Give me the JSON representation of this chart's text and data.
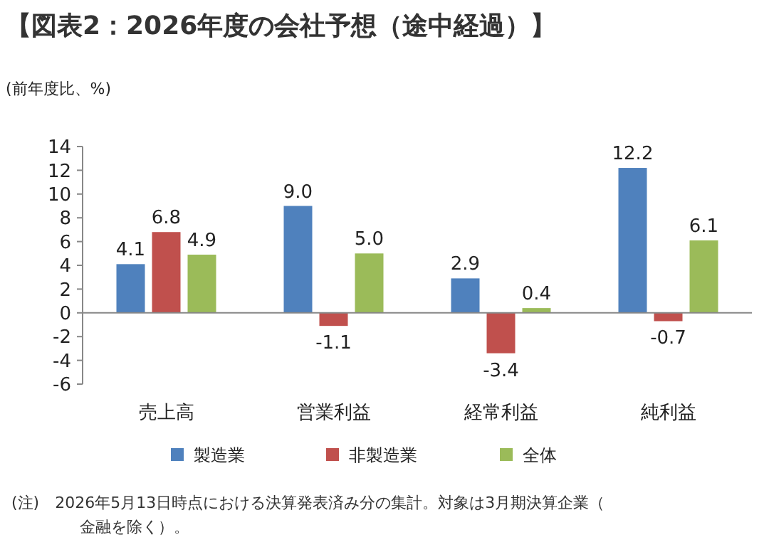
{
  "chart_data": {
    "type": "bar",
    "title": "【図表2：2026年度の会社予想（途中経過）】",
    "ylabel": "(前年度比、%)",
    "categories": [
      "売上高",
      "営業利益",
      "経常利益",
      "純利益"
    ],
    "series": [
      {
        "name": "製造業",
        "color": "#4f81bd",
        "values": [
          4.1,
          9.0,
          2.9,
          12.2
        ],
        "value_labels": [
          "4.1",
          "9.0",
          "2.9",
          "12.2"
        ]
      },
      {
        "name": "非製造業",
        "color": "#c0504d",
        "values": [
          6.8,
          -1.1,
          -3.4,
          -0.7
        ],
        "value_labels": [
          "6.8",
          "-1.1",
          "-3.4",
          "-0.7"
        ]
      },
      {
        "name": "全体",
        "color": "#9bbb59",
        "values": [
          4.9,
          5.0,
          0.4,
          6.1
        ],
        "value_labels": [
          "4.9",
          "5.0",
          "0.4",
          "6.1"
        ]
      }
    ],
    "ylim": [
      -6,
      14
    ],
    "yticks": [
      -6,
      -4,
      -2,
      0,
      2,
      4,
      6,
      8,
      10,
      12,
      14
    ],
    "legend": "bottom",
    "annotations": [
      "(注)　2026年5月13日時点における決算発表済み分の集計。対象は3月期決算企業（金融を除く）。"
    ]
  }
}
